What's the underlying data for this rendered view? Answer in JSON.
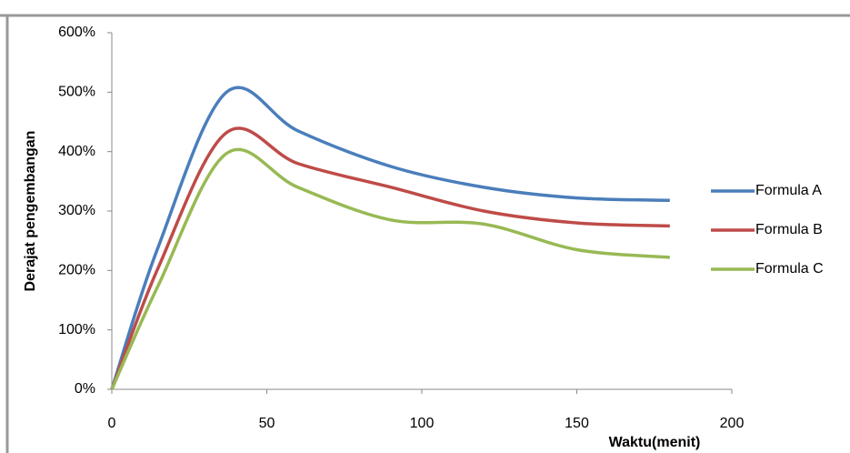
{
  "chart_data": {
    "type": "line",
    "x_label": "Waktu(menit)",
    "y_label": "Derajat pengembangan",
    "x": [
      0,
      15,
      37,
      60,
      90,
      120,
      150,
      180
    ],
    "series": [
      {
        "name": "Formula A",
        "color": "#4a7ebb",
        "values": [
          0,
          240,
          500,
          435,
          375,
          340,
          322,
          318
        ]
      },
      {
        "name": "Formula B",
        "color": "#be4b48",
        "values": [
          0,
          205,
          432,
          380,
          340,
          300,
          280,
          275
        ]
      },
      {
        "name": "Formula C",
        "color": "#98b954",
        "values": [
          0,
          175,
          397,
          340,
          285,
          278,
          235,
          222
        ]
      }
    ],
    "xlim": [
      0,
      200
    ],
    "xticks": [
      0,
      50,
      100,
      150,
      200
    ],
    "ylim": [
      0,
      600
    ],
    "yticks": [
      {
        "value": 0,
        "label": "0%"
      },
      {
        "value": 100,
        "label": "100%"
      },
      {
        "value": 200,
        "label": "200%"
      },
      {
        "value": 300,
        "label": "300%"
      },
      {
        "value": 400,
        "label": "400%"
      },
      {
        "value": 500,
        "label": "500%"
      },
      {
        "value": 600,
        "label": "600%"
      }
    ],
    "grid": false,
    "legend": "right"
  }
}
